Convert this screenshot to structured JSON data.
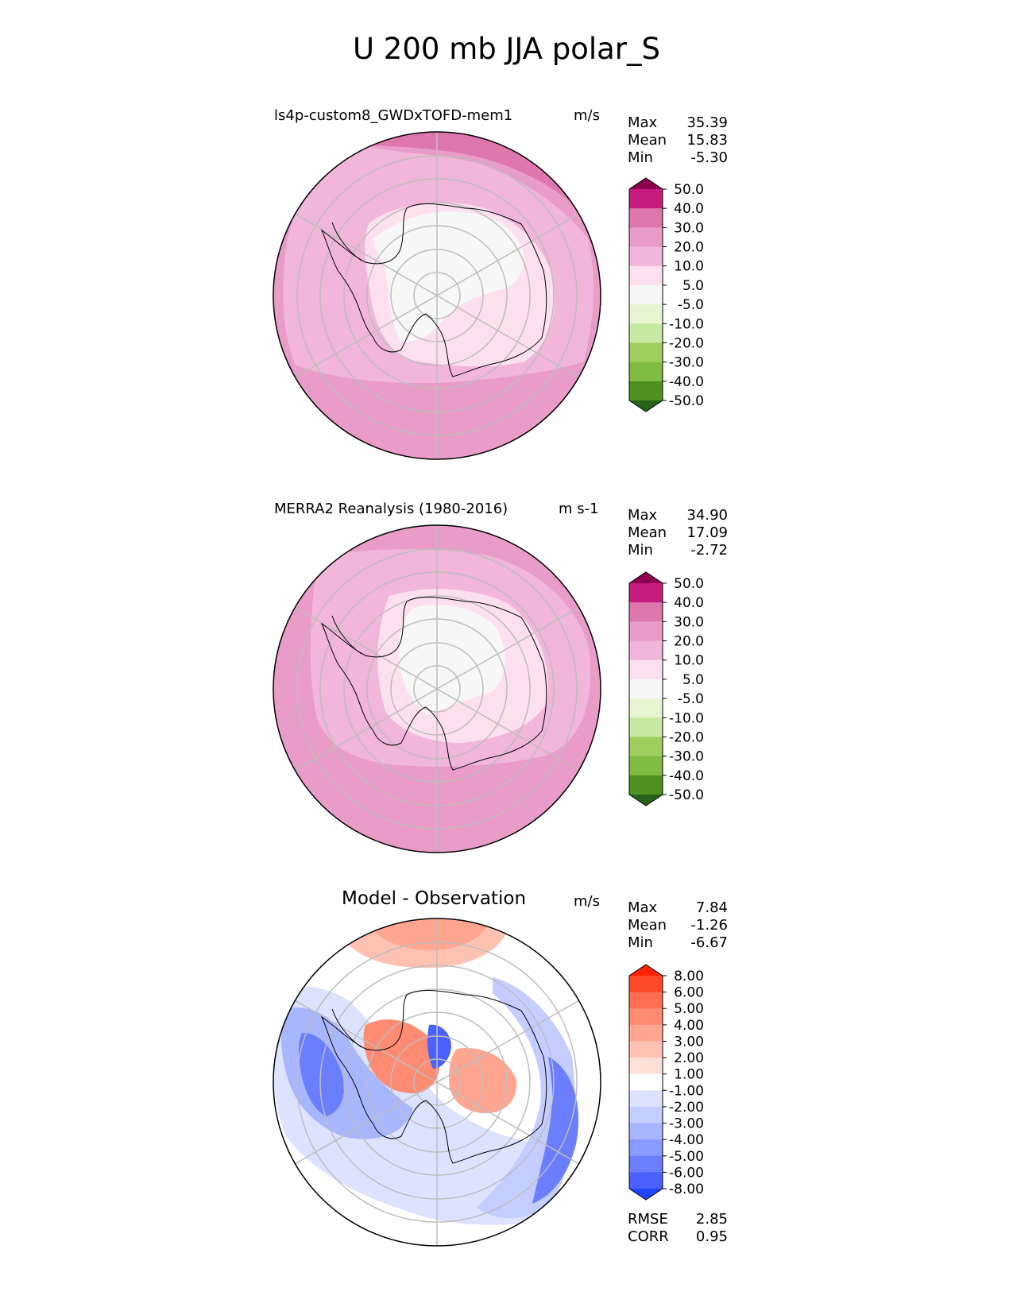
{
  "title": "U 200 mb JJA polar_S",
  "panels": [
    {
      "name": "ls4p-custom8_GWDxTOFD-mem1",
      "units": "m/s",
      "stats": [
        {
          "label": "Max",
          "value": "35.39"
        },
        {
          "label": "Mean",
          "value": "15.83"
        },
        {
          "label": "Min",
          "value": "-5.30"
        }
      ],
      "colorbar": {
        "ticks": [
          "50.0",
          "40.0",
          "30.0",
          "20.0",
          "10.0",
          "5.0",
          "-5.0",
          "-10.0",
          "-20.0",
          "-30.0",
          "-40.0",
          "-50.0"
        ],
        "colors": [
          "#8e0152",
          "#c51b7d",
          "#de77ae",
          "#e99cc8",
          "#f1b6da",
          "#fde0ef",
          "#f7f7f7",
          "#e6f5d0",
          "#c7e8a0",
          "#9dce5e",
          "#7fbc41",
          "#4d9221",
          "#276419"
        ]
      }
    },
    {
      "name": "MERRA2 Reanalysis (1980-2016)",
      "units": "m s-1",
      "stats": [
        {
          "label": "Max",
          "value": "34.90"
        },
        {
          "label": "Mean",
          "value": "17.09"
        },
        {
          "label": "Min",
          "value": "-2.72"
        }
      ],
      "colorbar": {
        "ticks": [
          "50.0",
          "40.0",
          "30.0",
          "20.0",
          "10.0",
          "5.0",
          "-5.0",
          "-10.0",
          "-20.0",
          "-30.0",
          "-40.0",
          "-50.0"
        ],
        "colors": [
          "#8e0152",
          "#c51b7d",
          "#de77ae",
          "#e99cc8",
          "#f1b6da",
          "#fde0ef",
          "#f7f7f7",
          "#e6f5d0",
          "#c7e8a0",
          "#9dce5e",
          "#7fbc41",
          "#4d9221",
          "#276419"
        ]
      }
    },
    {
      "name": "Model - Observation",
      "units": "m/s",
      "stats": [
        {
          "label": "Max",
          "value": "7.84"
        },
        {
          "label": "Mean",
          "value": "-1.26"
        },
        {
          "label": "Min",
          "value": "-6.67"
        }
      ],
      "colorbar": {
        "ticks": [
          "8.00",
          "6.00",
          "5.00",
          "4.00",
          "3.00",
          "2.00",
          "1.00",
          "-1.00",
          "-2.00",
          "-3.00",
          "-4.00",
          "-5.00",
          "-6.00",
          "-8.00"
        ],
        "colors": [
          "#ff2200",
          "#ff4a2a",
          "#ff6e50",
          "#ff8b72",
          "#ffa590",
          "#ffc2b2",
          "#ffe0d8",
          "#ffffff",
          "#dde3ff",
          "#c3cdff",
          "#a8b6ff",
          "#8a9bff",
          "#6b7eff",
          "#4a60ff",
          "#2244ff"
        ]
      },
      "extra_stats": [
        {
          "label": "RMSE",
          "value": "2.85"
        },
        {
          "label": "CORR",
          "value": "0.95"
        }
      ]
    }
  ]
}
